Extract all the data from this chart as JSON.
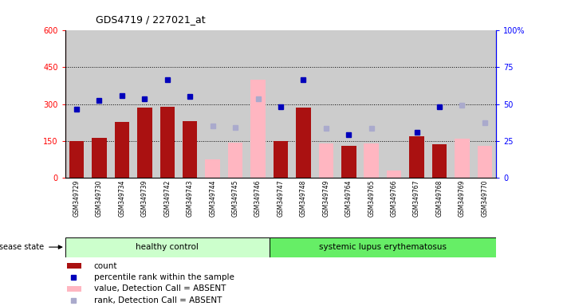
{
  "title": "GDS4719 / 227021_at",
  "samples": [
    "GSM349729",
    "GSM349730",
    "GSM349734",
    "GSM349739",
    "GSM349742",
    "GSM349743",
    "GSM349744",
    "GSM349745",
    "GSM349746",
    "GSM349747",
    "GSM349748",
    "GSM349749",
    "GSM349764",
    "GSM349765",
    "GSM349766",
    "GSM349767",
    "GSM349768",
    "GSM349769",
    "GSM349770"
  ],
  "count_dark": [
    148,
    163,
    228,
    285,
    290,
    230,
    null,
    null,
    null,
    148,
    285,
    null,
    130,
    null,
    null,
    168,
    135,
    null,
    null
  ],
  "count_absent": [
    null,
    null,
    null,
    null,
    null,
    null,
    75,
    143,
    400,
    null,
    null,
    138,
    null,
    138,
    30,
    null,
    null,
    160,
    130
  ],
  "rank_dark": [
    280,
    315,
    335,
    320,
    400,
    330,
    null,
    null,
    null,
    290,
    400,
    null,
    175,
    null,
    null,
    185,
    290,
    null,
    null
  ],
  "rank_absent": [
    null,
    null,
    null,
    null,
    null,
    null,
    210,
    203,
    320,
    null,
    null,
    200,
    null,
    200,
    null,
    null,
    null,
    295,
    225
  ],
  "healthy_count": 9,
  "bar_dark_color": "#AA1111",
  "bar_absent_color": "#FFB6C1",
  "dot_dark_color": "#0000BB",
  "dot_absent_color": "#AAAACC",
  "col_bg_color": "#CCCCCC",
  "hlines": [
    150,
    300,
    450
  ],
  "ylim_left": [
    0,
    600
  ],
  "ylim_right": [
    0,
    100
  ],
  "yticks_left": [
    0,
    150,
    300,
    450,
    600
  ],
  "yticks_right": [
    0,
    25,
    50,
    75,
    100
  ],
  "healthy_color": "#CCFFCC",
  "sle_color": "#66EE66",
  "healthy_label": "healthy control",
  "sle_label": "systemic lupus erythematosus",
  "disease_state_label": "disease state",
  "legend": [
    {
      "label": "count",
      "color": "#AA1111",
      "type": "rect"
    },
    {
      "label": "percentile rank within the sample",
      "color": "#0000BB",
      "type": "square"
    },
    {
      "label": "value, Detection Call = ABSENT",
      "color": "#FFB6C1",
      "type": "rect"
    },
    {
      "label": "rank, Detection Call = ABSENT",
      "color": "#AAAACC",
      "type": "square"
    }
  ]
}
